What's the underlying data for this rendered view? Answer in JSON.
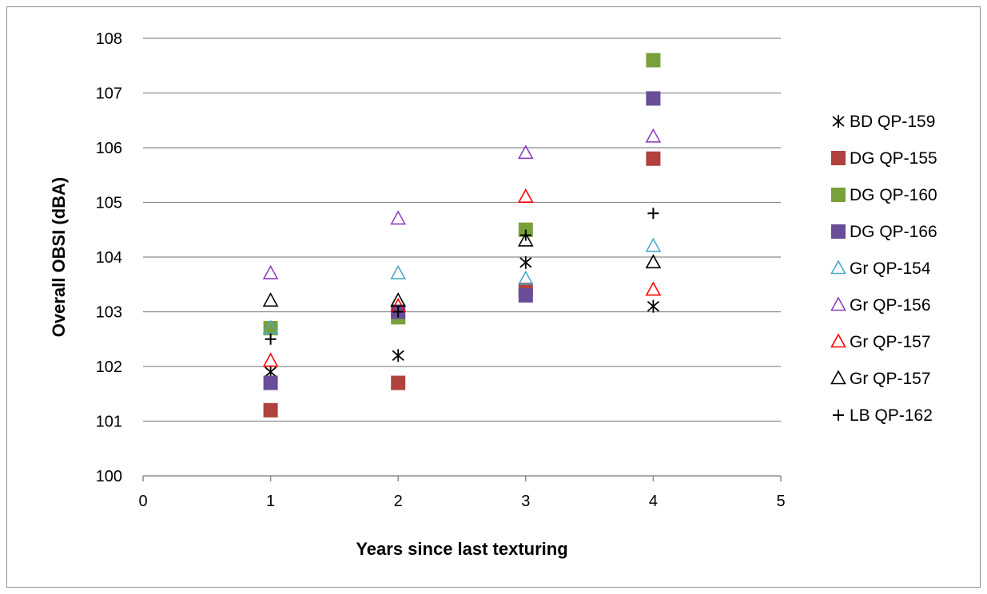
{
  "chart_data": {
    "type": "scatter",
    "title": "",
    "xlabel": "Years since last texturing",
    "ylabel": "Overall OBSI (dBA)",
    "xlim": [
      0,
      5
    ],
    "ylim": [
      100,
      108
    ],
    "xticks": [
      0,
      1,
      2,
      3,
      4,
      5
    ],
    "yticks": [
      100,
      101,
      102,
      103,
      104,
      105,
      106,
      107,
      108
    ],
    "grid": "horizontal",
    "legend_position": "right",
    "series": [
      {
        "name": "BD QP-159",
        "marker": "asterisk",
        "color": "#000000",
        "x": [
          1,
          2,
          3,
          4
        ],
        "y": [
          101.9,
          102.2,
          103.9,
          103.1
        ]
      },
      {
        "name": "DG QP-155",
        "marker": "square",
        "color": "#b0413e",
        "x": [
          1,
          2,
          3,
          4
        ],
        "y": [
          101.2,
          101.7,
          103.4,
          105.8
        ]
      },
      {
        "name": "DG QP-160",
        "marker": "square",
        "color": "#7aa03b",
        "x": [
          1,
          2,
          3,
          4
        ],
        "y": [
          102.7,
          102.9,
          104.5,
          107.6
        ]
      },
      {
        "name": "DG QP-166",
        "marker": "square",
        "color": "#6a4d98",
        "x": [
          1,
          2,
          3,
          4
        ],
        "y": [
          101.7,
          103.0,
          103.3,
          106.9
        ]
      },
      {
        "name": "Gr QP-154",
        "marker": "triangle-open",
        "color": "#4ba8c8",
        "x": [
          1,
          2,
          3,
          4
        ],
        "y": [
          102.7,
          103.7,
          103.6,
          104.2
        ]
      },
      {
        "name": "Gr QP-156",
        "marker": "triangle-open",
        "color": "#8e3fc0",
        "x": [
          1,
          2,
          3,
          4
        ],
        "y": [
          103.7,
          104.7,
          105.9,
          106.2
        ]
      },
      {
        "name": "Gr QP-157",
        "marker": "triangle-open",
        "color": "#ff0000",
        "x": [
          1,
          2,
          3,
          4
        ],
        "y": [
          102.1,
          103.1,
          105.1,
          103.4
        ]
      },
      {
        "name": "Gr QP-157",
        "marker": "triangle-open",
        "color": "#000000",
        "x": [
          1,
          2,
          3,
          4
        ],
        "y": [
          103.2,
          103.2,
          104.3,
          103.9
        ]
      },
      {
        "name": "LB QP-162",
        "marker": "plus",
        "color": "#000000",
        "x": [
          1,
          2,
          3,
          4
        ],
        "y": [
          102.5,
          103.0,
          104.4,
          104.8
        ]
      }
    ]
  }
}
